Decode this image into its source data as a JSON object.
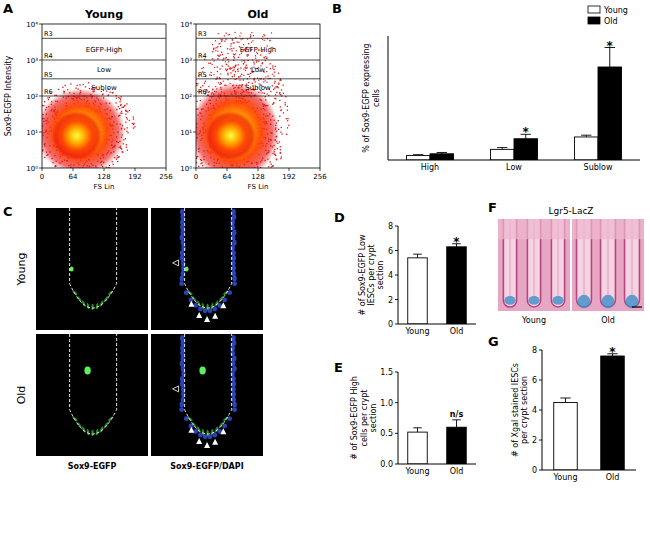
{
  "chart_data": [
    {
      "type": "density",
      "panel": "A",
      "title": "Young",
      "y_label": "Sox9-EGFP Intensity",
      "x_label": "FS Lin",
      "log": "y",
      "xlim": [
        0,
        256
      ],
      "xticks": [
        0,
        64,
        128,
        192,
        256
      ],
      "ylim": [
        1,
        10000
      ],
      "yticks": [
        {
          "value": 1,
          "label": "10⁰"
        },
        {
          "value": 10,
          "label": "10¹"
        },
        {
          "value": 100,
          "label": "10²"
        },
        {
          "value": 1000,
          "label": "10³"
        },
        {
          "value": 10000,
          "label": "10⁴"
        }
      ],
      "gates": [
        {
          "label": "R3",
          "value": 4000
        },
        {
          "label": "R4",
          "value": 1000,
          "region": "EGFP-High"
        },
        {
          "label": "R5",
          "value": 300,
          "region": "Low"
        },
        {
          "label": "R6",
          "value": 100,
          "region": "Sublow"
        }
      ]
    },
    {
      "type": "density",
      "title": "Old",
      "x_label": "FS Lin",
      "log": "y",
      "xlim": [
        0,
        256
      ],
      "xticks": [
        0,
        64,
        128,
        192,
        256
      ],
      "ylim": [
        1,
        10000
      ],
      "yticks": [
        {
          "value": 1,
          "label": "10⁰"
        },
        {
          "value": 10,
          "label": "10¹"
        },
        {
          "value": 100,
          "label": "10²"
        },
        {
          "value": 1000,
          "label": "10³"
        },
        {
          "value": 10000,
          "label": "10⁴"
        }
      ],
      "gates": [
        {
          "label": "R3",
          "value": 4000
        },
        {
          "label": "R4",
          "value": 1000,
          "region": "EGFP-High"
        },
        {
          "label": "R5",
          "value": 300,
          "region": "Low"
        },
        {
          "label": "R6",
          "value": 100,
          "region": "Sublow"
        }
      ]
    },
    {
      "type": "bar",
      "panel": "B",
      "y_label": "% of Sox9-EGFP expressing cells",
      "categories": [
        "High",
        "Low",
        "Sublow"
      ],
      "series": [
        {
          "name": "Young",
          "color": "#ffffff",
          "values": [
            0.5,
            1.2,
            2.6
          ],
          "errors": [
            0.1,
            0.2,
            0.2
          ]
        },
        {
          "name": "Old",
          "color": "#000000",
          "values": [
            0.7,
            2.4,
            10.5
          ],
          "errors": [
            0.15,
            0.5,
            2.2
          ],
          "significance": [
            null,
            "*",
            "*"
          ]
        }
      ],
      "ylim": [
        0,
        14
      ],
      "tick_labels": "x",
      "legend": "top-right"
    },
    {
      "type": "bar",
      "panel": "D",
      "y_label": "# of Sox9-EGFP Low IESCs per crypt section",
      "categories": [
        "Young",
        "Old"
      ],
      "values": [
        5.4,
        6.3
      ],
      "errors": [
        0.3,
        0.25
      ],
      "colors": [
        "#ffffff",
        "#000000"
      ],
      "significance": [
        null,
        "*"
      ],
      "ylim": [
        0,
        8
      ],
      "yticks": [
        0,
        2,
        4,
        6,
        8
      ]
    },
    {
      "type": "bar",
      "panel": "E",
      "y_label": "# of Sox9-EGFP High cells per crypt section",
      "categories": [
        "Young",
        "Old"
      ],
      "values": [
        0.52,
        0.6
      ],
      "errors": [
        0.07,
        0.12
      ],
      "colors": [
        "#ffffff",
        "#000000"
      ],
      "significance": [
        null,
        "n/s"
      ],
      "ylim": [
        0,
        1.5
      ],
      "yticks": [
        {
          "value": 0,
          "label": "0.0"
        },
        {
          "value": 0.5,
          "label": "0.5"
        },
        {
          "value": 1,
          "label": "1.0"
        },
        {
          "value": 1.5,
          "label": "1.5"
        }
      ]
    },
    {
      "type": "bar",
      "panel": "G",
      "y_label": "# of Xgal stained IESCs per crypt section",
      "categories": [
        "Young",
        "Old"
      ],
      "values": [
        4.5,
        7.6
      ],
      "errors": [
        0.3,
        0.15
      ],
      "colors": [
        "#ffffff",
        "#000000"
      ],
      "significance": [
        null,
        "*"
      ],
      "ylim": [
        0,
        8
      ],
      "yticks": [
        0,
        2,
        4,
        6,
        8
      ]
    }
  ],
  "images": [
    {
      "panel": "C",
      "rows": [
        "Young",
        "Old"
      ],
      "columns": [
        "Sox9-EGFP",
        "Sox9-EGFP/DAPI"
      ]
    },
    {
      "panel": "F",
      "title": "Lgr5-LacZ",
      "columns": [
        "Young",
        "Old"
      ]
    }
  ]
}
